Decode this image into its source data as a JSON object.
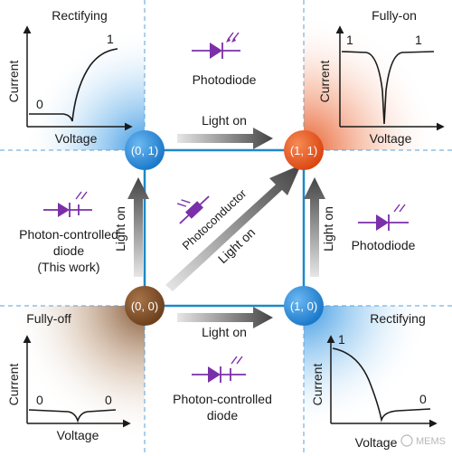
{
  "quadrants": {
    "top_left": {
      "title": "Rectifying",
      "y_label": "Current",
      "x_label": "Voltage",
      "level_low": "0",
      "level_high": "1"
    },
    "top_right": {
      "title": "Fully-on",
      "y_label": "Current",
      "x_label": "Voltage",
      "level_left": "1",
      "level_right": "1"
    },
    "bottom_left": {
      "title": "Fully-off",
      "y_label": "Current",
      "x_label": "Voltage",
      "level_left": "0",
      "level_right": "0"
    },
    "bottom_right": {
      "title": "Rectifying",
      "y_label": "Current",
      "x_label": "Voltage",
      "level_high": "1",
      "level_low": "0"
    }
  },
  "states": {
    "s00": {
      "label": "(0, 0)",
      "color": "#7a4a25"
    },
    "s01": {
      "label": "(0, 1)",
      "color": "#2b8fe0"
    },
    "s10": {
      "label": "(1, 0)",
      "color": "#2b8fe0"
    },
    "s11": {
      "label": "(1, 1)",
      "color": "#e6521b"
    }
  },
  "transitions": {
    "top": "Light on",
    "bottom": "Light on",
    "left": "Light on",
    "right": "Light on",
    "diagonal": "Light on"
  },
  "devices": {
    "top_center": "Photodiode",
    "right_center": "Photodiode",
    "left_center": [
      "Photon-controlled",
      "diode",
      "(This work)"
    ],
    "bottom_center": [
      "Photon-controlled",
      "diode"
    ],
    "center": "Photoconductor"
  },
  "watermark": "MEMS",
  "colors": {
    "symbol": "#7b2fa8",
    "line": "#1e88c8",
    "arrow": "#555555",
    "dashed": "#5aa0d8"
  }
}
